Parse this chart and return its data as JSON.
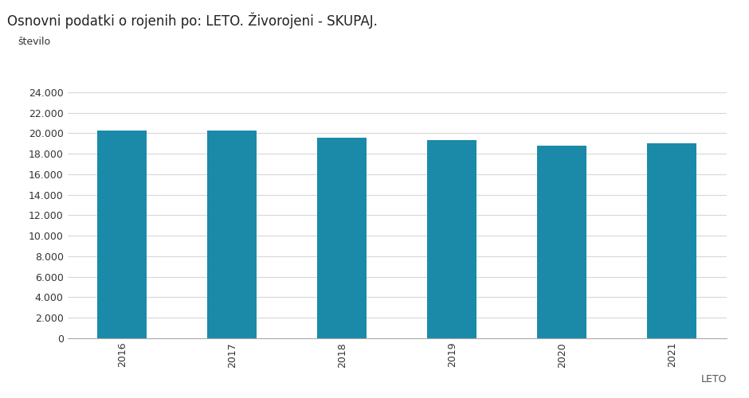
{
  "title": "Osnovni podatki o rojenih po: LETO. Živorojeni - SKUPAJ.",
  "categories": [
    "2016",
    "2017",
    "2018",
    "2019",
    "2020",
    "2021"
  ],
  "values": [
    20241,
    20241,
    19597,
    19334,
    18799,
    19053
  ],
  "bar_color": "#1a8aa8",
  "ylabel": "število",
  "xlabel": "LETO",
  "ylim": [
    0,
    26000
  ],
  "yticks": [
    0,
    2000,
    4000,
    6000,
    8000,
    10000,
    12000,
    14000,
    16000,
    18000,
    20000,
    22000,
    24000
  ],
  "title_fontsize": 12,
  "axis_label_fontsize": 9,
  "tick_fontsize": 9,
  "background_color": "#ffffff",
  "grid_color": "#d8d8d8"
}
